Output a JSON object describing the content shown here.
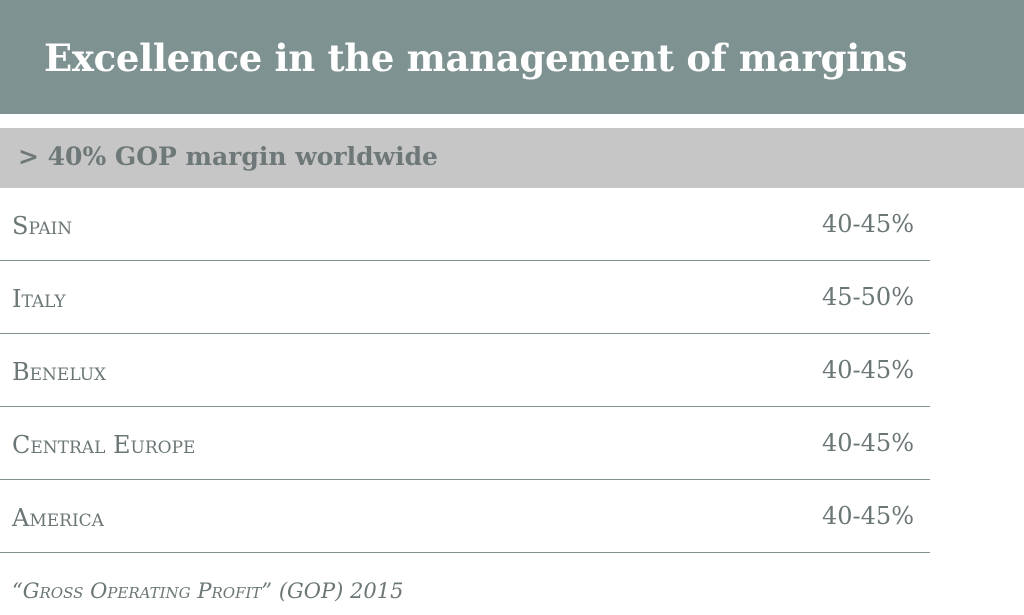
{
  "header": {
    "title": "Excellence in the management of margins"
  },
  "subheader": {
    "text": "> 40% GOP margin worldwide"
  },
  "table": {
    "rows": [
      {
        "region": "Spain",
        "margin": "40-45%"
      },
      {
        "region": "Italy",
        "margin": "45-50%"
      },
      {
        "region": "Benelux",
        "margin": "40-45%"
      },
      {
        "region": "Central Europe",
        "margin": "40-45%"
      },
      {
        "region": "America",
        "margin": "40-45%"
      }
    ]
  },
  "footnote": {
    "text": "“Gross Operating Profit” (GOP) 2015"
  },
  "colors": {
    "title_band": "#7f9292",
    "subtitle_band": "#c6c6c6",
    "text": "#6b7676",
    "divider": "#7f9292"
  }
}
